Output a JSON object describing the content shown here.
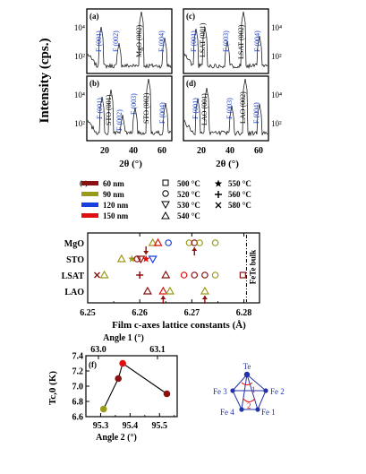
{
  "figure": {
    "top": {
      "ylabel": "Intensity (cps.)",
      "xlabel_left": "2θ (°)",
      "xlabel_right": "2θ (°)",
      "x_ticks_left": [
        "20",
        "40",
        "60"
      ],
      "x_ticks_right": [
        "20",
        "40",
        "60"
      ],
      "y_ticks": [
        "10⁴",
        "10²"
      ],
      "panels": [
        {
          "letter": "(a)",
          "peaks": [
            {
              "label": "F (001)",
              "color": "#1a3fc8"
            },
            {
              "label": "F (002)",
              "color": "#1a3fc8"
            },
            {
              "label": "MgO (002)",
              "color": "#000000"
            },
            {
              "label": "F (004)",
              "color": "#1a3fc8"
            }
          ]
        },
        {
          "letter": "(c)",
          "peaks": [
            {
              "label": "F (001)",
              "color": "#1a3fc8"
            },
            {
              "label": "LSAT (001)",
              "color": "#000000"
            },
            {
              "label": "F (003)",
              "color": "#1a3fc8"
            },
            {
              "label": "LSAT (002)",
              "color": "#000000"
            },
            {
              "label": "F (004)",
              "color": "#1a3fc8"
            }
          ]
        },
        {
          "letter": "(b)",
          "peaks": [
            {
              "label": "F (001)",
              "color": "#1a3fc8"
            },
            {
              "label": "STO (001)",
              "color": "#000000"
            },
            {
              "label": "F (002)",
              "color": "#1a3fc8"
            },
            {
              "label": "F (003)",
              "color": "#1a3fc8"
            },
            {
              "label": "STO (002)",
              "color": "#000000"
            },
            {
              "label": "F (004)",
              "color": "#1a3fc8"
            }
          ]
        },
        {
          "letter": "(d)",
          "peaks": [
            {
              "label": "F (001)",
              "color": "#1a3fc8"
            },
            {
              "label": "LAO (001)",
              "color": "#000000"
            },
            {
              "label": "F (003)",
              "color": "#1a3fc8"
            },
            {
              "label": "LAO (002)",
              "color": "#000000"
            },
            {
              "label": "F (004)",
              "color": "#1a3fc8"
            }
          ]
        }
      ]
    },
    "panel_e": {
      "letter": "(e)",
      "legend_thickness": [
        {
          "label": "60 nm",
          "color": "#8b1010"
        },
        {
          "label": "90 nm",
          "color": "#9a9a1a"
        },
        {
          "label": "120 nm",
          "color": "#1a3fe0"
        },
        {
          "label": "150 nm",
          "color": "#e01010"
        }
      ],
      "legend_temp_col1": [
        {
          "label": "500 °C",
          "symbol": "square"
        },
        {
          "label": "520 °C",
          "symbol": "circle"
        },
        {
          "label": "530 °C",
          "symbol": "triangle-down"
        },
        {
          "label": "540 °C",
          "symbol": "triangle-up"
        }
      ],
      "legend_temp_col2": [
        {
          "label": "550 °C",
          "symbol": "star"
        },
        {
          "label": "560 °C",
          "symbol": "plus"
        },
        {
          "label": "580 °C",
          "symbol": "cross"
        }
      ],
      "substrates": [
        "MgO",
        "STO",
        "LSAT",
        "LAO"
      ],
      "x_ticks": [
        "6.25",
        "6.26",
        "6.27",
        "6.28"
      ],
      "xlabel": "Film c-axes lattice constants (Å)",
      "bulk_label": "FeTe bulk"
    },
    "panel_f": {
      "letter": "(f)",
      "top_axis_label": "Angle 1 (°)",
      "top_ticks": [
        "63.0",
        "63.1"
      ],
      "bottom_axis_label": "Angle 2 (°)",
      "bottom_ticks": [
        "95.3",
        "95.4",
        "95.5"
      ],
      "ylabel": "Tc,0 (K)",
      "y_ticks": [
        "7.4",
        "7.2",
        "7.0",
        "6.8",
        "6.6"
      ],
      "inset": {
        "top": "Te",
        "left": "Fe 3",
        "right": "Fe 2",
        "bottom_left": "Fe 4",
        "bottom_right": "Fe 1",
        "angle1": "1",
        "angle2": "2"
      }
    }
  },
  "chart_data": [
    {
      "type": "scatter",
      "title": "",
      "xlabel": "Film c-axes lattice constants (Å)",
      "ylabel": "",
      "xlim": [
        6.25,
        6.283
      ],
      "categories": [
        "MgO",
        "STO",
        "LSAT",
        "LAO"
      ],
      "x_ticks": [
        6.25,
        6.26,
        6.27,
        6.28
      ],
      "reference_line": {
        "x": 6.2805,
        "label": "FeTe bulk"
      },
      "points": [
        {
          "substrate": "MgO",
          "x": 6.2625,
          "thickness": "90 nm",
          "temp": "540 °C"
        },
        {
          "substrate": "MgO",
          "x": 6.2635,
          "thickness": "150 nm",
          "temp": "540 °C"
        },
        {
          "substrate": "MgO",
          "x": 6.2655,
          "thickness": "120 nm",
          "temp": "520 °C"
        },
        {
          "substrate": "MgO",
          "x": 6.2695,
          "thickness": "90 nm",
          "temp": "520 °C"
        },
        {
          "substrate": "MgO",
          "x": 6.2705,
          "thickness": "60 nm",
          "temp": "520 °C"
        },
        {
          "substrate": "MgO",
          "x": 6.2715,
          "thickness": "90 nm",
          "temp": "520 °C"
        },
        {
          "substrate": "MgO",
          "x": 6.2745,
          "thickness": "90 nm",
          "temp": "520 °C"
        },
        {
          "substrate": "STO",
          "x": 6.2565,
          "thickness": "90 nm",
          "temp": "540 °C"
        },
        {
          "substrate": "STO",
          "x": 6.2585,
          "thickness": "90 nm",
          "temp": "550 °C"
        },
        {
          "substrate": "STO",
          "x": 6.2595,
          "thickness": "60 nm",
          "temp": "520 °C"
        },
        {
          "substrate": "STO",
          "x": 6.2602,
          "thickness": "60 nm",
          "temp": "530 °C"
        },
        {
          "substrate": "STO",
          "x": 6.2612,
          "thickness": "150 nm",
          "temp": "550 °C"
        },
        {
          "substrate": "STO",
          "x": 6.2625,
          "thickness": "120 nm",
          "temp": "530 °C"
        },
        {
          "substrate": "LSAT",
          "x": 6.2518,
          "thickness": "60 nm",
          "temp": "580 °C"
        },
        {
          "substrate": "LSAT",
          "x": 6.2532,
          "thickness": "90 nm",
          "temp": "540 °C"
        },
        {
          "substrate": "LSAT",
          "x": 6.26,
          "thickness": "60 nm",
          "temp": "560 °C"
        },
        {
          "substrate": "LSAT",
          "x": 6.265,
          "thickness": "60 nm",
          "temp": "540 °C"
        },
        {
          "substrate": "LSAT",
          "x": 6.2685,
          "thickness": "150 nm",
          "temp": "520 °C"
        },
        {
          "substrate": "LSAT",
          "x": 6.2705,
          "thickness": "60 nm",
          "temp": "520 °C"
        },
        {
          "substrate": "LSAT",
          "x": 6.2725,
          "thickness": "60 nm",
          "temp": "520 °C"
        },
        {
          "substrate": "LSAT",
          "x": 6.2745,
          "thickness": "90 nm",
          "temp": "520 °C"
        },
        {
          "substrate": "LSAT",
          "x": 6.2798,
          "thickness": "60 nm",
          "temp": "500 °C"
        },
        {
          "substrate": "LAO",
          "x": 6.2615,
          "thickness": "60 nm",
          "temp": "540 °C"
        },
        {
          "substrate": "LAO",
          "x": 6.2645,
          "thickness": "150 nm",
          "temp": "540 °C"
        },
        {
          "substrate": "LAO",
          "x": 6.2658,
          "thickness": "90 nm",
          "temp": "540 °C"
        },
        {
          "substrate": "LAO",
          "x": 6.2725,
          "thickness": "90 nm",
          "temp": "540 °C"
        }
      ],
      "arrows": [
        {
          "substrate": "MgO",
          "x": 6.2705,
          "direction": "up"
        },
        {
          "substrate": "STO",
          "x": 6.2612,
          "direction": "down"
        },
        {
          "substrate": "LAO",
          "x": 6.2645,
          "direction": "up"
        },
        {
          "substrate": "LAO",
          "x": 6.2725,
          "direction": "up"
        }
      ]
    },
    {
      "type": "line",
      "title": "",
      "xlabel": "Angle 2 (°)",
      "x2label": "Angle 1 (°)",
      "ylabel": "Tc,0 (K)",
      "xlim": [
        95.25,
        95.56
      ],
      "ylim": [
        6.6,
        7.4
      ],
      "x": [
        95.31,
        95.36,
        95.375,
        95.525
      ],
      "y": [
        6.7,
        7.1,
        7.3,
        6.9
      ],
      "point_colors": [
        "#9a9a1a",
        "#8b1010",
        "#e01010",
        "#8b1010"
      ]
    }
  ]
}
